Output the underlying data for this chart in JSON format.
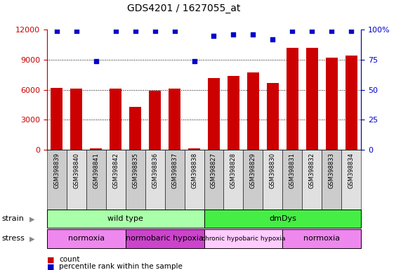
{
  "title": "GDS4201 / 1627055_at",
  "samples": [
    "GSM398839",
    "GSM398840",
    "GSM398841",
    "GSM398842",
    "GSM398835",
    "GSM398836",
    "GSM398837",
    "GSM398838",
    "GSM398827",
    "GSM398828",
    "GSM398829",
    "GSM398830",
    "GSM398831",
    "GSM398832",
    "GSM398833",
    "GSM398834"
  ],
  "counts": [
    6200,
    6100,
    150,
    6100,
    4300,
    5900,
    6100,
    150,
    7200,
    7400,
    7700,
    6700,
    10200,
    10200,
    9200,
    9400
  ],
  "percentile": [
    99,
    99,
    74,
    99,
    99,
    99,
    99,
    74,
    95,
    96,
    96,
    92,
    99,
    99,
    99,
    99
  ],
  "bar_color": "#cc0000",
  "dot_color": "#0000cc",
  "ylim_left": [
    0,
    12000
  ],
  "ylim_right": [
    0,
    100
  ],
  "yticks_left": [
    0,
    3000,
    6000,
    9000,
    12000
  ],
  "yticks_right": [
    0,
    25,
    50,
    75,
    100
  ],
  "ytick_labels_right": [
    "0",
    "25",
    "50",
    "75",
    "100%"
  ],
  "grid_values": [
    3000,
    6000,
    9000
  ],
  "strain_groups": [
    {
      "label": "wild type",
      "start": 0,
      "end": 8,
      "color": "#aaffaa"
    },
    {
      "label": "dmDys",
      "start": 8,
      "end": 16,
      "color": "#44ee44"
    }
  ],
  "stress_groups": [
    {
      "label": "normoxia",
      "start": 0,
      "end": 4,
      "color": "#ee88ee"
    },
    {
      "label": "normobaric hypoxia",
      "start": 4,
      "end": 8,
      "color": "#cc44cc"
    },
    {
      "label": "chronic hypobaric hypoxia",
      "start": 8,
      "end": 12,
      "color": "#ffccff"
    },
    {
      "label": "normoxia",
      "start": 12,
      "end": 16,
      "color": "#ee88ee"
    }
  ],
  "legend_count_color": "#cc0000",
  "legend_dot_color": "#0000cc",
  "background_color": "#ffffff",
  "col_colors_even": "#cccccc",
  "col_colors_odd": "#e0e0e0"
}
